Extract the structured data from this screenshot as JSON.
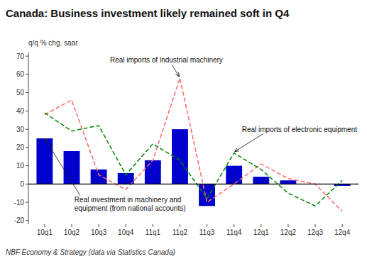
{
  "chart_data": {
    "type": "bar",
    "title": "Canada: Business investment likely remained soft in Q4",
    "ylabel": "q/q % chg. saar",
    "footnote": "NBF Economy & Strategy (data via Statistics Canada)",
    "categories": [
      "10q1",
      "10q2",
      "10q3",
      "10q4",
      "11q1",
      "11q2",
      "11q3",
      "11q4",
      "12q1",
      "12q2",
      "12q3",
      "12q4"
    ],
    "series": [
      {
        "name": "Real investment in machinery and\nequipment (from national accounts)",
        "type": "bar",
        "color": "#0000cc",
        "values": [
          25,
          18,
          8,
          6,
          13,
          30,
          -12,
          10,
          4,
          2,
          0,
          -1
        ]
      },
      {
        "name": "Real imports of industrial machinery",
        "type": "line",
        "line_style": "dashed",
        "color": "#ff6666",
        "values": [
          38,
          46,
          5,
          -3,
          13,
          58,
          -10,
          0,
          11,
          3,
          0,
          -15
        ]
      },
      {
        "name": "Real imports of electronic equipment",
        "type": "line",
        "line_style": "dashed",
        "color": "#008800",
        "values": [
          39,
          29,
          32,
          5,
          22,
          13,
          -8,
          17,
          8,
          -5,
          -12,
          2
        ]
      }
    ],
    "ylim": [
      -22,
      72
    ],
    "yticks": [
      -20,
      -10,
      0,
      10,
      20,
      30,
      40,
      50,
      60,
      70
    ],
    "grid": false
  }
}
